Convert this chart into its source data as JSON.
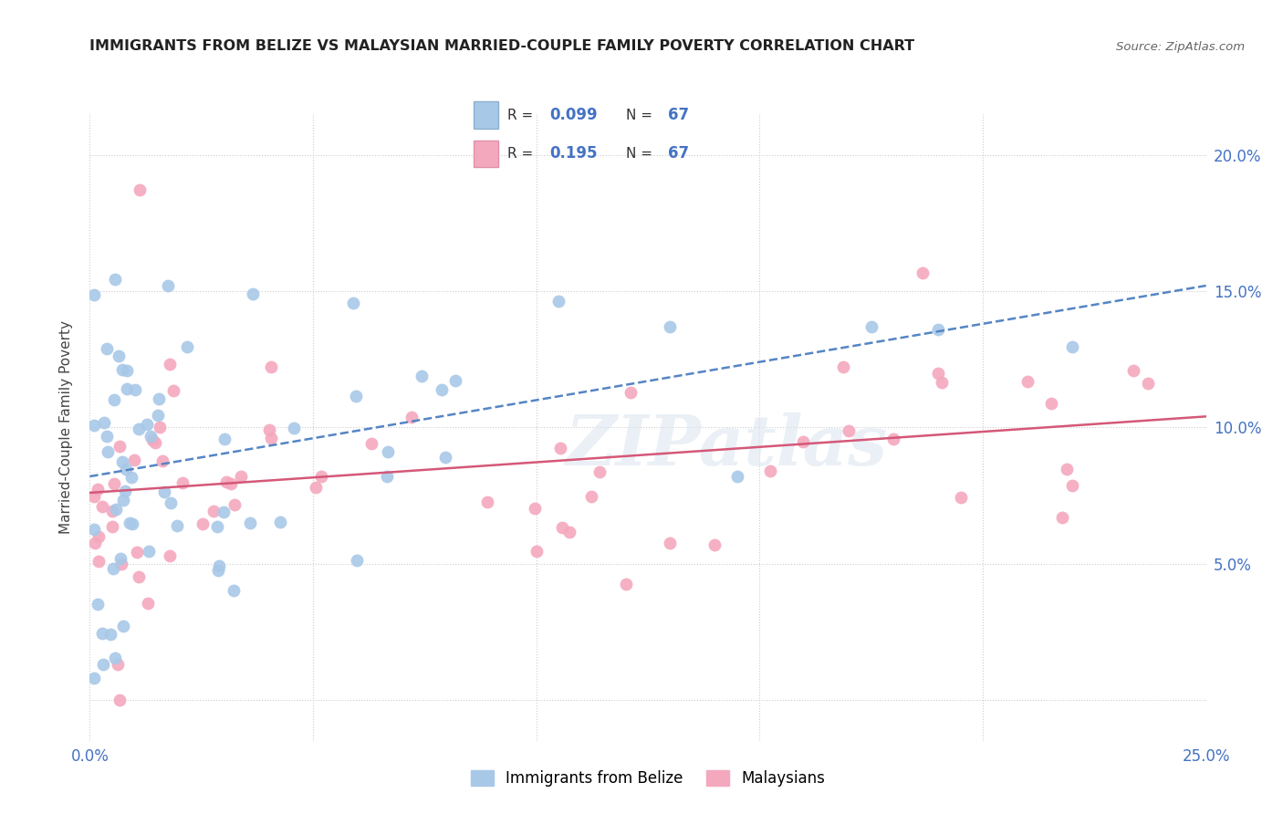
{
  "title": "IMMIGRANTS FROM BELIZE VS MALAYSIAN MARRIED-COUPLE FAMILY POVERTY CORRELATION CHART",
  "source_text": "Source: ZipAtlas.com",
  "ylabel": "Married-Couple Family Poverty",
  "xlim": [
    0.0,
    0.25
  ],
  "ylim": [
    -0.015,
    0.215
  ],
  "xtick_positions": [
    0.0,
    0.05,
    0.1,
    0.15,
    0.2,
    0.25
  ],
  "xtick_labels": [
    "0.0%",
    "",
    "",
    "",
    "",
    "25.0%"
  ],
  "ytick_positions": [
    0.0,
    0.05,
    0.1,
    0.15,
    0.2
  ],
  "ytick_labels": [
    "",
    "5.0%",
    "10.0%",
    "15.0%",
    "20.0%"
  ],
  "background_color": "#ffffff",
  "grid_color": "#cccccc",
  "watermark_text": "ZIPatlas",
  "belize_color": "#a8c8e8",
  "malay_color": "#f4a8be",
  "belize_line_color": "#5585c5",
  "malay_line_color": "#d45878",
  "R_belize": "0.099",
  "R_malay": "0.195",
  "N_belize": "67",
  "N_malay": "67",
  "legend_label_belize": "Immigrants from Belize",
  "legend_label_malay": "Malaysians",
  "belize_reg": [
    0.0,
    0.25,
    0.082,
    0.152
  ],
  "malay_reg": [
    0.0,
    0.25,
    0.076,
    0.104
  ]
}
